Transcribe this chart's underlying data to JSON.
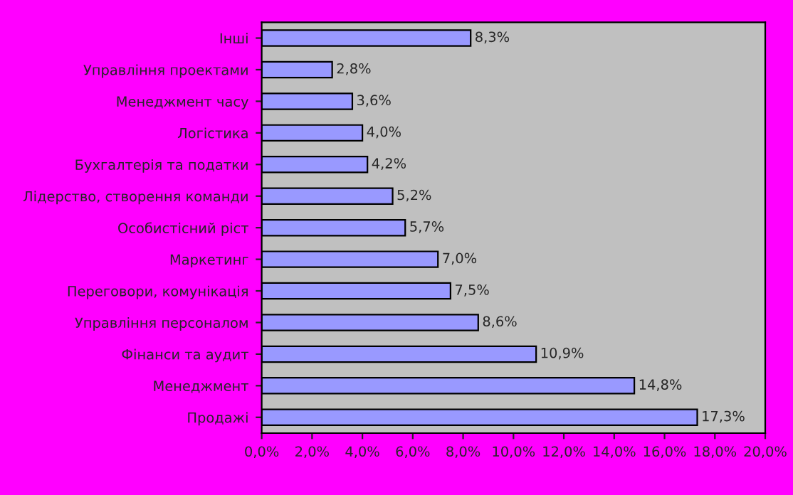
{
  "chart_data": {
    "type": "bar",
    "orientation": "horizontal",
    "categories": [
      "Інші",
      "Управління проектами",
      "Менеджмент часу",
      "Логістика",
      "Бухгалтерія та податки",
      "Лідерство, створення команди",
      "Особистісний ріст",
      "Маркетинг",
      "Переговори, комунікація",
      "Управління персоналом",
      "Фінанси та аудит",
      "Менеджмент",
      "Продажі"
    ],
    "values": [
      8.3,
      2.8,
      3.6,
      4.0,
      4.2,
      5.2,
      5.7,
      7.0,
      7.5,
      8.6,
      10.9,
      14.8,
      17.3
    ],
    "value_labels": [
      "8,3%",
      "2,8%",
      "3,6%",
      "4,0%",
      "4,2%",
      "5,2%",
      "5,7%",
      "7,0%",
      "7,5%",
      "8,6%",
      "10,9%",
      "14,8%",
      "17,3%"
    ],
    "color": "#9999ff",
    "xlim": [
      0,
      20
    ],
    "xticks": [
      {
        "value": 0,
        "label": "0,0%"
      },
      {
        "value": 2,
        "label": "2,0%"
      },
      {
        "value": 4,
        "label": "4,0%"
      },
      {
        "value": 6,
        "label": "6,0%"
      },
      {
        "value": 8,
        "label": "8,0%"
      },
      {
        "value": 10,
        "label": "10,0%"
      },
      {
        "value": 12,
        "label": "12,0%"
      },
      {
        "value": 14,
        "label": "14,0%"
      },
      {
        "value": 16,
        "label": "16,0%"
      },
      {
        "value": 18,
        "label": "18,0%"
      },
      {
        "value": 20,
        "label": "20,0%"
      }
    ],
    "grid": false,
    "legend": false
  }
}
